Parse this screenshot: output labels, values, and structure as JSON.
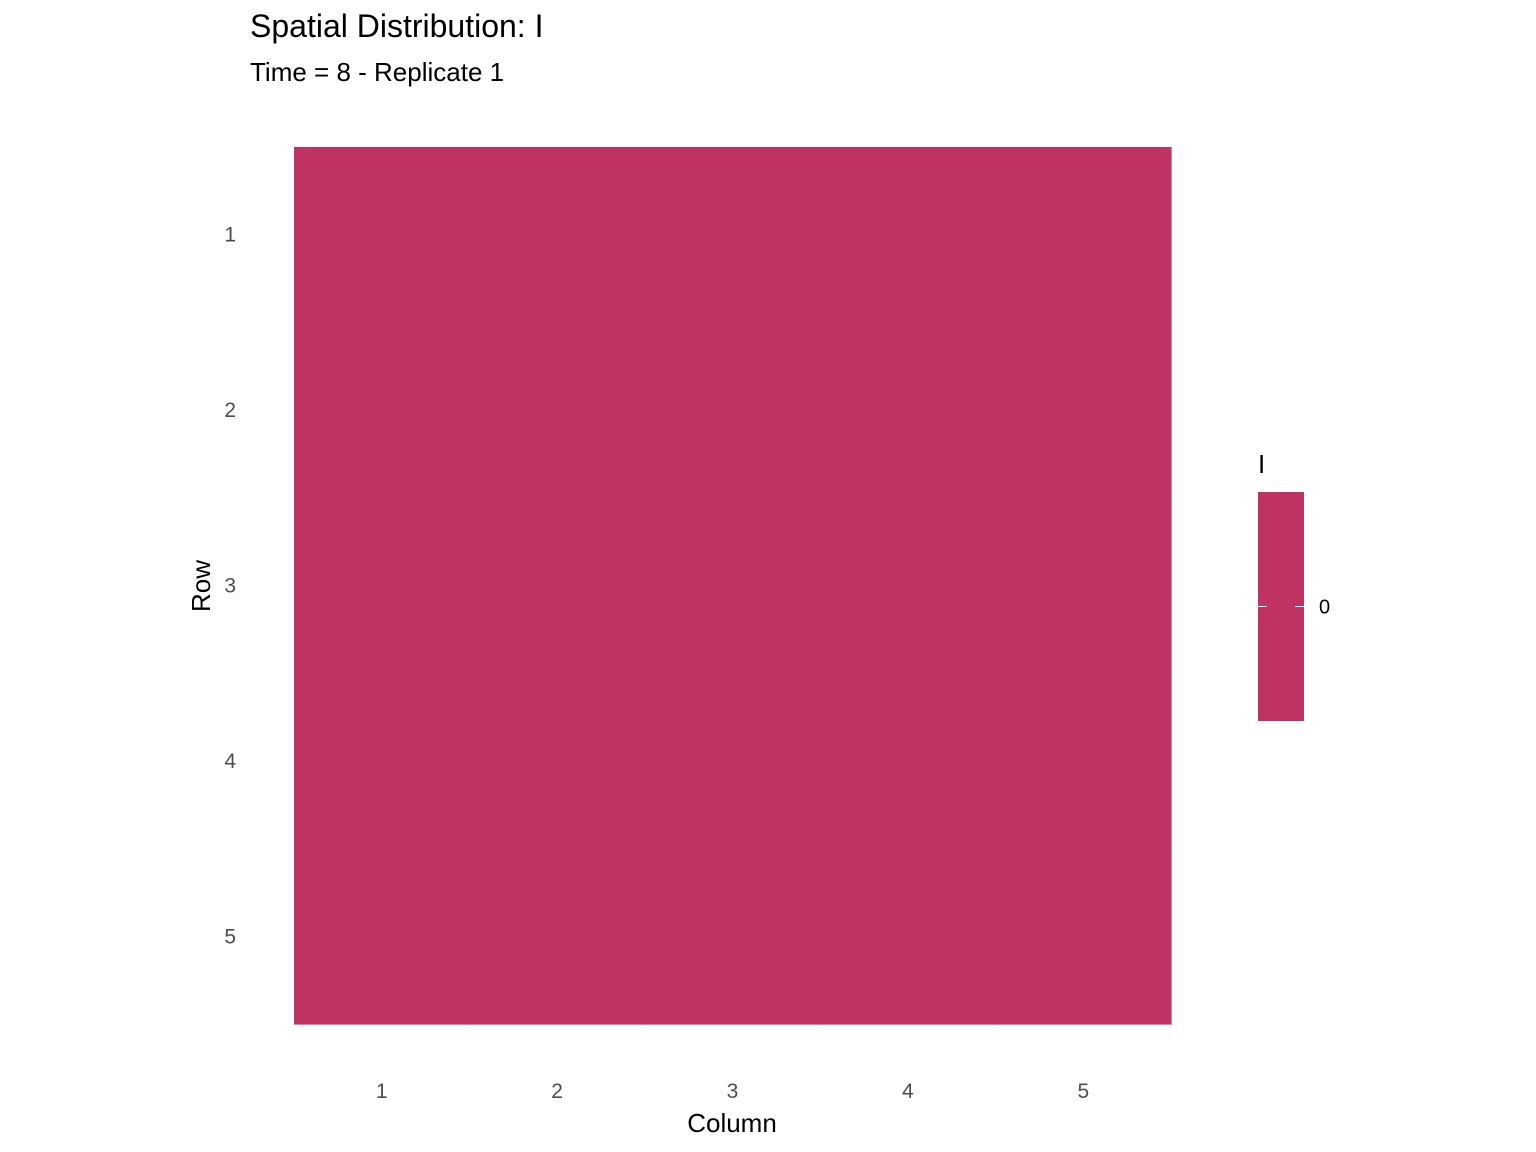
{
  "chart_data": {
    "type": "heatmap",
    "title": "Spatial Distribution: I",
    "subtitle": "Time = 8 - Replicate 1",
    "xlabel": "Column",
    "ylabel": "Row",
    "x_categories": [
      "1",
      "2",
      "3",
      "4",
      "5"
    ],
    "y_categories": [
      "1",
      "2",
      "3",
      "4",
      "5"
    ],
    "values": [
      [
        0,
        0,
        0,
        0,
        0
      ],
      [
        0,
        0,
        0,
        0,
        0
      ],
      [
        0,
        0,
        0,
        0,
        0
      ],
      [
        0,
        0,
        0,
        0,
        0
      ],
      [
        0,
        0,
        0,
        0,
        0
      ]
    ],
    "y_reversed": true,
    "grid": false,
    "legend": {
      "title": "I",
      "placement": "right",
      "tick_values": [
        0
      ],
      "tick_labels": [
        "0"
      ],
      "fill_color": "#be3264"
    },
    "colors": {
      "cell": "#be3264",
      "tick_text": "#4d4d4d",
      "text": "#000000",
      "background": "#ffffff"
    }
  }
}
